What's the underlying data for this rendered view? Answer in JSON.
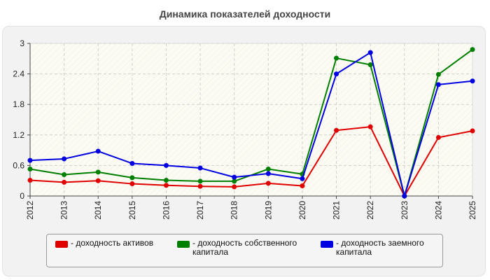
{
  "chart_data": {
    "type": "line",
    "title": "Динамика показателей доходности",
    "xlabel": "",
    "ylabel": "",
    "x": [
      "2012",
      "2013",
      "2014",
      "2015",
      "2016",
      "2017",
      "2018",
      "2019",
      "2020",
      "2021",
      "2022",
      "2023",
      "2024",
      "2025"
    ],
    "ylim": [
      0,
      3
    ],
    "yticks": [
      0,
      0.6,
      1.2,
      1.8,
      2.4,
      3
    ],
    "ytick_labels": [
      "0",
      "0.6",
      "1.2",
      "1.8",
      "2.4",
      "3"
    ],
    "grid": true,
    "legend_position": "bottom",
    "series": [
      {
        "name": "- доходность активов",
        "color": "#e00000",
        "values": [
          0.31,
          0.27,
          0.3,
          0.24,
          0.21,
          0.19,
          0.18,
          0.25,
          0.2,
          1.29,
          1.36,
          0.0,
          1.15,
          1.28
        ]
      },
      {
        "name": "- доходность собственного капитала",
        "color": "#007f00",
        "values": [
          0.53,
          0.42,
          0.47,
          0.36,
          0.31,
          0.29,
          0.29,
          0.53,
          0.43,
          2.71,
          2.58,
          0.0,
          2.39,
          2.88
        ]
      },
      {
        "name": "- доходность заемного капитала",
        "color": "#0000e0",
        "values": [
          0.7,
          0.73,
          0.88,
          0.64,
          0.6,
          0.55,
          0.37,
          0.44,
          0.34,
          2.4,
          2.82,
          0.0,
          2.19,
          2.26
        ]
      }
    ]
  }
}
